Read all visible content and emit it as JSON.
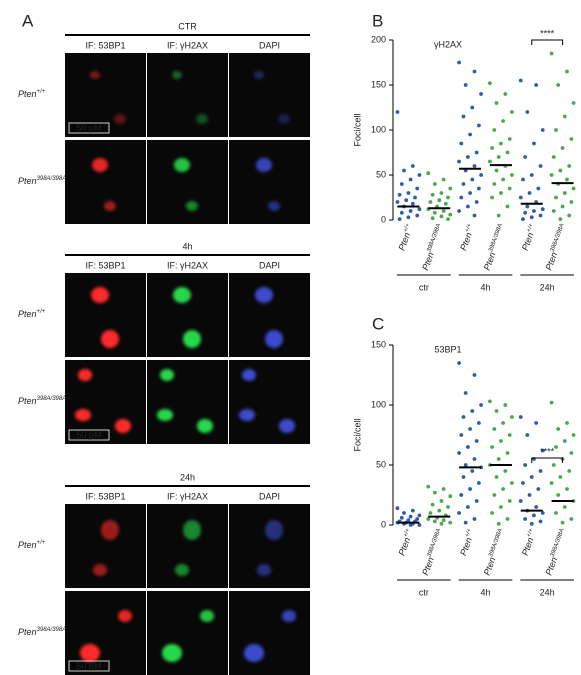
{
  "panel_a": {
    "label": "A",
    "blocks": [
      {
        "title": "CTR",
        "columns": [
          "IF: 53BP1",
          "IF: γH2AX",
          "DAPI"
        ],
        "rows": [
          {
            "text": "Pten",
            "sup": "+/+"
          },
          {
            "text": "Pten",
            "sup": "398A/398A"
          }
        ],
        "scale_bar": "50 μM"
      },
      {
        "title": "4h",
        "columns": [
          "IF: 53BP1",
          "IF: γH2AX",
          "DAPI"
        ],
        "rows": [
          {
            "text": "Pten",
            "sup": "+/+"
          },
          {
            "text": "Pten",
            "sup": "398A/398A"
          }
        ],
        "scale_bar": "50 μM"
      },
      {
        "title": "24h",
        "columns": [
          "IF: 53BP1",
          "IF: γH2AX",
          "DAPI"
        ],
        "rows": [
          {
            "text": "Pten",
            "sup": "+/+"
          },
          {
            "text": "Pten",
            "sup": "398A/398A"
          }
        ],
        "scale_bar": "50 μM"
      }
    ]
  },
  "chart_data": [
    {
      "type": "strip",
      "label": "B",
      "title": "γH2AX",
      "y_label": "Foci/cell",
      "categories": [
        {
          "text": "Pten",
          "sup": "+/+"
        },
        {
          "text": "Pten",
          "sup": "398A/398A"
        },
        {
          "text": "Pten",
          "sup": "+/+"
        },
        {
          "text": "Pten",
          "sup": "398A/398A"
        },
        {
          "text": "Pten",
          "sup": "+/+"
        },
        {
          "text": "Pten",
          "sup": "398A/398A"
        }
      ],
      "colors": [
        "#2d5ea8",
        "#4ba84b",
        "#2d5ea8",
        "#4ba84b",
        "#2d5ea8",
        "#4ba84b"
      ],
      "group_labels": [
        "ctr",
        "4h",
        "24h"
      ],
      "points": [
        [
          120,
          60,
          55,
          50,
          45,
          40,
          35,
          30,
          28,
          25,
          22,
          20,
          18,
          15,
          12,
          10,
          8,
          5,
          3,
          1
        ],
        [
          52,
          45,
          40,
          35,
          30,
          28,
          25,
          22,
          20,
          18,
          15,
          12,
          10,
          8,
          6,
          4,
          2,
          1
        ],
        [
          175,
          165,
          150,
          140,
          125,
          115,
          105,
          95,
          85,
          75,
          70,
          65,
          60,
          55,
          50,
          45,
          40,
          35,
          30,
          25,
          20,
          15,
          10,
          5
        ],
        [
          152,
          140,
          130,
          120,
          110,
          100,
          90,
          85,
          80,
          75,
          70,
          65,
          60,
          55,
          50,
          45,
          40,
          35,
          30,
          25,
          15,
          5
        ],
        [
          155,
          150,
          120,
          100,
          85,
          70,
          60,
          50,
          45,
          35,
          30,
          25,
          20,
          15,
          12,
          10,
          8,
          5,
          3,
          1
        ],
        [
          185,
          165,
          150,
          130,
          115,
          100,
          90,
          80,
          70,
          60,
          55,
          50,
          45,
          40,
          35,
          30,
          25,
          20,
          15,
          10,
          5,
          1
        ]
      ],
      "means": [
        15,
        13,
        57,
        61,
        18,
        41
      ],
      "ylim": [
        0,
        200
      ],
      "yticks": [
        0,
        50,
        100,
        150,
        200
      ],
      "annotation": "****"
    },
    {
      "type": "strip",
      "label": "C",
      "title": "53BP1",
      "y_label": "Foci/cell",
      "categories": [
        {
          "text": "Pten",
          "sup": "+/+"
        },
        {
          "text": "Pten",
          "sup": "398A/398A"
        },
        {
          "text": "Pten",
          "sup": "+/+"
        },
        {
          "text": "Pten",
          "sup": "398A/398A"
        },
        {
          "text": "Pten",
          "sup": "+/+"
        },
        {
          "text": "Pten",
          "sup": "398A/398A"
        }
      ],
      "colors": [
        "#2d5ea8",
        "#4ba84b",
        "#2d5ea8",
        "#4ba84b",
        "#2d5ea8",
        "#4ba84b"
      ],
      "group_labels": [
        "ctr",
        "4h",
        "24h"
      ],
      "points": [
        [
          14,
          12,
          10,
          8,
          7,
          6,
          5,
          4,
          3,
          3,
          2,
          2,
          1,
          1,
          0,
          0
        ],
        [
          32,
          30,
          27,
          24,
          20,
          17,
          15,
          12,
          10,
          8,
          6,
          5,
          4,
          3,
          2,
          1
        ],
        [
          135,
          125,
          110,
          100,
          95,
          90,
          85,
          80,
          75,
          70,
          65,
          60,
          55,
          50,
          48,
          45,
          40,
          35,
          30,
          25,
          20,
          15,
          10,
          5,
          2
        ],
        [
          103,
          100,
          95,
          90,
          85,
          80,
          75,
          70,
          65,
          60,
          55,
          50,
          45,
          40,
          35,
          30,
          25,
          20,
          15,
          10,
          5,
          1
        ],
        [
          90,
          85,
          75,
          62,
          55,
          50,
          45,
          40,
          35,
          30,
          25,
          20,
          15,
          12,
          10,
          8,
          5,
          3,
          1
        ],
        [
          102,
          85,
          80,
          75,
          70,
          65,
          60,
          55,
          50,
          45,
          40,
          35,
          30,
          25,
          20,
          15,
          10,
          5,
          2
        ]
      ],
      "means": [
        2,
        7,
        48,
        50,
        12,
        20
      ],
      "ylim": [
        0,
        150
      ],
      "yticks": [
        0,
        50,
        100,
        150
      ],
      "annotation": "****"
    }
  ]
}
